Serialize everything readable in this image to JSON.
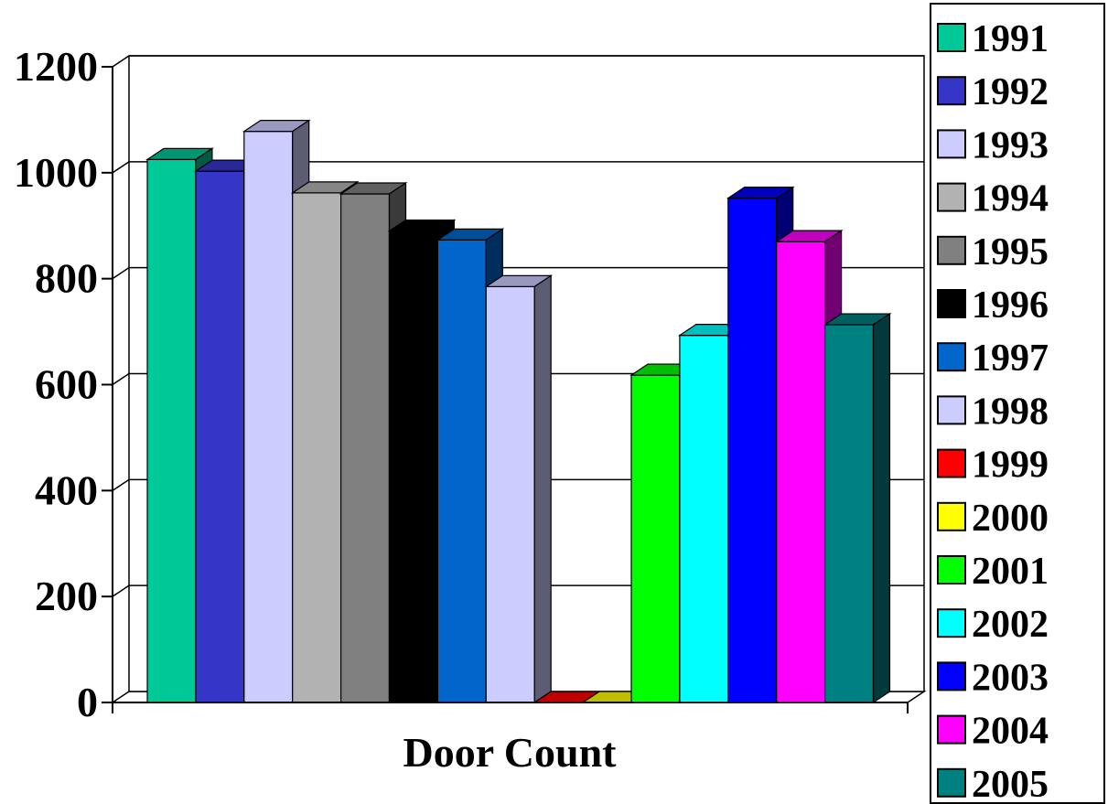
{
  "chart_data": {
    "type": "bar",
    "categories": [
      "Door Count"
    ],
    "xlabel": "Door Count",
    "ylabel": "",
    "title": "",
    "ylim": [
      0,
      1200
    ],
    "yticks": [
      0,
      200,
      400,
      600,
      800,
      1000,
      1200
    ],
    "grid": true,
    "legend_position": "right",
    "series": [
      {
        "name": "1991",
        "values": [
          1025
        ],
        "color": "#00c896"
      },
      {
        "name": "1992",
        "values": [
          1003
        ],
        "color": "#3535c8"
      },
      {
        "name": "1993",
        "values": [
          1078
        ],
        "color": "#ccccff"
      },
      {
        "name": "1994",
        "values": [
          962
        ],
        "color": "#b2b2b2"
      },
      {
        "name": "1995",
        "values": [
          960
        ],
        "color": "#808080"
      },
      {
        "name": "1996",
        "values": [
          890
        ],
        "color": "#000000"
      },
      {
        "name": "1997",
        "values": [
          873
        ],
        "color": "#0066cc"
      },
      {
        "name": "1998",
        "values": [
          785
        ],
        "color": "#ccccff"
      },
      {
        "name": "1999",
        "values": [
          0
        ],
        "color": "#ff0000"
      },
      {
        "name": "2000",
        "values": [
          0
        ],
        "color": "#ffff00"
      },
      {
        "name": "2001",
        "values": [
          618
        ],
        "color": "#00ff00"
      },
      {
        "name": "2002",
        "values": [
          693
        ],
        "color": "#00ffff"
      },
      {
        "name": "2003",
        "values": [
          952
        ],
        "color": "#0000ff"
      },
      {
        "name": "2004",
        "values": [
          870
        ],
        "color": "#ff00ff"
      },
      {
        "name": "2005",
        "values": [
          713
        ],
        "color": "#008080"
      }
    ]
  }
}
